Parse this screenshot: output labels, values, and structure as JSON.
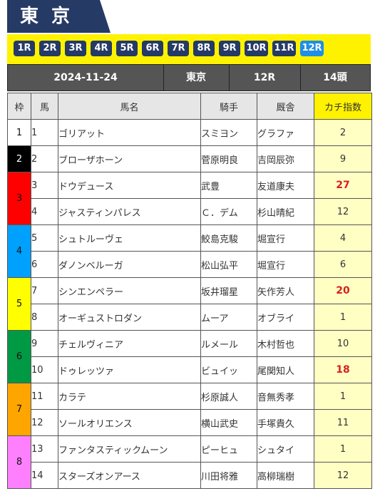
{
  "header": {
    "title": "東京"
  },
  "race_tabs": [
    {
      "label": "1R",
      "active": false
    },
    {
      "label": "2R",
      "active": false
    },
    {
      "label": "3R",
      "active": false
    },
    {
      "label": "4R",
      "active": false
    },
    {
      "label": "5R",
      "active": false
    },
    {
      "label": "6R",
      "active": false
    },
    {
      "label": "7R",
      "active": false
    },
    {
      "label": "8R",
      "active": false
    },
    {
      "label": "9R",
      "active": false
    },
    {
      "label": "10R",
      "active": false
    },
    {
      "label": "11R",
      "active": false
    },
    {
      "label": "12R",
      "active": true
    }
  ],
  "info": {
    "date": "2024-11-24",
    "venue": "東京",
    "race": "12R",
    "runners": "14頭"
  },
  "table": {
    "headers": {
      "waku": "枠",
      "uma": "馬",
      "name": "馬名",
      "jockey": "騎手",
      "trainer": "厩舎",
      "index": "カチ指数"
    },
    "rows": [
      {
        "waku": "1",
        "uma": "1",
        "name": "ゴリアット",
        "jockey": "スミヨン",
        "trainer": "グラファ",
        "index": "2",
        "hot": false
      },
      {
        "waku": "2",
        "uma": "2",
        "name": "ブローザホーン",
        "jockey": "菅原明良",
        "trainer": "吉岡辰弥",
        "index": "9",
        "hot": false
      },
      {
        "waku": "3",
        "uma": "3",
        "name": "ドウデュース",
        "jockey": "武豊",
        "trainer": "友道康夫",
        "index": "27",
        "hot": true
      },
      {
        "waku": "3",
        "uma": "4",
        "name": "ジャスティンパレス",
        "jockey": "Ｃ．デム",
        "trainer": "杉山晴紀",
        "index": "12",
        "hot": false
      },
      {
        "waku": "4",
        "uma": "5",
        "name": "シュトルーヴェ",
        "jockey": "鮫島克駿",
        "trainer": "堀宣行",
        "index": "4",
        "hot": false
      },
      {
        "waku": "4",
        "uma": "6",
        "name": "ダノンベルーガ",
        "jockey": "松山弘平",
        "trainer": "堀宣行",
        "index": "6",
        "hot": false
      },
      {
        "waku": "5",
        "uma": "7",
        "name": "シンエンペラー",
        "jockey": "坂井瑠星",
        "trainer": "矢作芳人",
        "index": "20",
        "hot": true
      },
      {
        "waku": "5",
        "uma": "8",
        "name": "オーギュストロダン",
        "jockey": "ムーア",
        "trainer": "オブライ",
        "index": "1",
        "hot": false
      },
      {
        "waku": "6",
        "uma": "9",
        "name": "チェルヴィニア",
        "jockey": "ルメール",
        "trainer": "木村哲也",
        "index": "10",
        "hot": false
      },
      {
        "waku": "6",
        "uma": "10",
        "name": "ドゥレッツァ",
        "jockey": "ビュイッ",
        "trainer": "尾関知人",
        "index": "18",
        "hot": true
      },
      {
        "waku": "7",
        "uma": "11",
        "name": "カラテ",
        "jockey": "杉原誠人",
        "trainer": "音無秀孝",
        "index": "1",
        "hot": false
      },
      {
        "waku": "7",
        "uma": "12",
        "name": "ソールオリエンス",
        "jockey": "横山武史",
        "trainer": "手塚貴久",
        "index": "11",
        "hot": false
      },
      {
        "waku": "8",
        "uma": "13",
        "name": "ファンタスティックムーン",
        "jockey": "ピーヒュ",
        "trainer": "シュタイ",
        "index": "1",
        "hot": false
      },
      {
        "waku": "8",
        "uma": "14",
        "name": "スターズオンアース",
        "jockey": "川田将雅",
        "trainer": "高柳瑞樹",
        "index": "12",
        "hot": false
      }
    ]
  },
  "colors": {
    "navy": "#263a66",
    "accent_yellow": "#fff200",
    "active_tab": "#1e8fe6",
    "hot_index": "#d62020"
  }
}
